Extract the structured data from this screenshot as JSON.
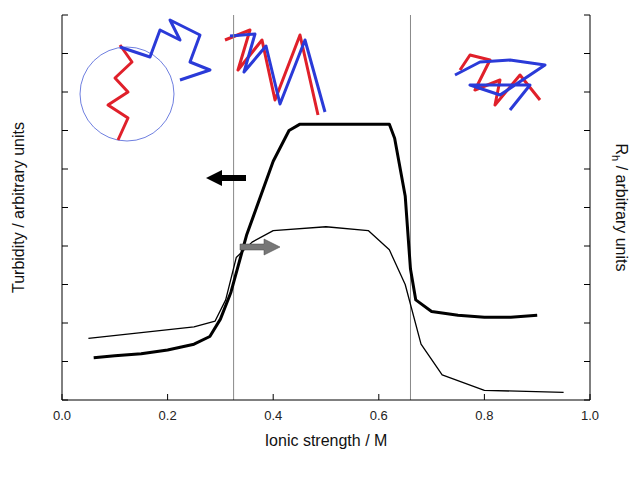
{
  "chart_data": {
    "type": "line",
    "x_label": "Ionic strength / M",
    "y_label": "Turbidity / arbitrary units",
    "y2_label": "Rh / arbitrary units",
    "xlim": [
      0.0,
      1.0
    ],
    "xticks": [
      {
        "value": 0,
        "label": "0.0"
      },
      0.2,
      0.4,
      0.6,
      0.8,
      {
        "value": 1,
        "label": "1.0"
      }
    ],
    "ylim": [
      0,
      10
    ],
    "yticks": [
      0,
      1,
      2,
      3,
      4,
      5,
      6,
      7,
      8,
      9,
      10
    ],
    "y2lim": [
      0,
      10
    ],
    "y2ticks": [
      0,
      1,
      2,
      3,
      4,
      5,
      6,
      7,
      8,
      9,
      10
    ],
    "tick_labels": "x",
    "grid": false,
    "vlines": [
      0.325,
      0.66
    ],
    "series": [
      {
        "color": "#000000",
        "line_style": "solid",
        "x": [
          0.06,
          0.1,
          0.15,
          0.2,
          0.25,
          0.28,
          0.3,
          0.32,
          0.35,
          0.4,
          0.43,
          0.45,
          0.5,
          0.55,
          0.62,
          0.63,
          0.65,
          0.66,
          0.67,
          0.7,
          0.75,
          0.8,
          0.85,
          0.9
        ],
        "values": [
          1.1,
          1.15,
          1.2,
          1.3,
          1.45,
          1.65,
          2.1,
          2.8,
          4.3,
          6.2,
          7.0,
          7.16,
          7.16,
          7.16,
          7.16,
          6.8,
          5.3,
          3.4,
          2.6,
          2.3,
          2.2,
          2.15,
          2.15,
          2.2
        ]
      },
      {
        "color": "#000000",
        "line_style": "solid",
        "axis": "y2",
        "x": [
          0.05,
          0.15,
          0.25,
          0.29,
          0.31,
          0.33,
          0.36,
          0.4,
          0.5,
          0.58,
          0.62,
          0.65,
          0.68,
          0.72,
          0.8,
          0.95
        ],
        "values": [
          1.6,
          1.75,
          1.9,
          2.05,
          2.6,
          3.7,
          4.1,
          4.4,
          4.5,
          4.4,
          3.9,
          3.0,
          1.45,
          0.65,
          0.25,
          0.2
        ]
      }
    ]
  }
}
